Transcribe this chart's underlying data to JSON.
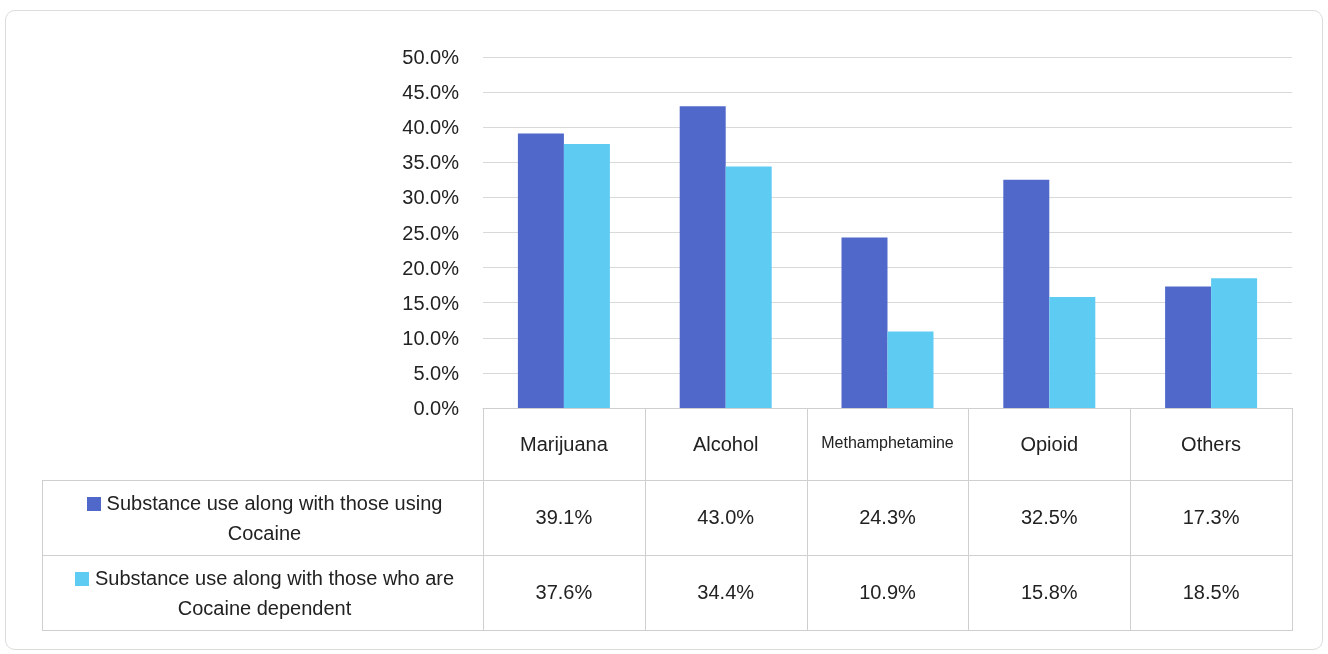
{
  "chart_data": {
    "type": "bar",
    "categories": [
      "Marijuana",
      "Alcohol",
      "Methamphetamine",
      "Opioid",
      "Others"
    ],
    "series": [
      {
        "name": "Substance use along with those using Cocaine",
        "color": "#5068c9",
        "values": [
          39.1,
          43.0,
          24.3,
          32.5,
          17.3
        ],
        "value_labels": [
          "39.1%",
          "43.0%",
          "24.3%",
          "32.5%",
          "17.3%"
        ]
      },
      {
        "name": "Substance use along with those who are Cocaine dependent",
        "color": "#5ecbf2",
        "values": [
          37.6,
          34.4,
          10.9,
          15.8,
          18.5
        ],
        "value_labels": [
          "37.6%",
          "34.4%",
          "10.9%",
          "15.8%",
          "18.5%"
        ]
      }
    ],
    "ylim": [
      0,
      50
    ],
    "yticks": [
      {
        "value": 0,
        "label": "0.0%"
      },
      {
        "value": 5,
        "label": "5.0%"
      },
      {
        "value": 10,
        "label": "10.0%"
      },
      {
        "value": 15,
        "label": "15.0%"
      },
      {
        "value": 20,
        "label": "20.0%"
      },
      {
        "value": 25,
        "label": "25.0%"
      },
      {
        "value": 30,
        "label": "30.0%"
      },
      {
        "value": 35,
        "label": "35.0%"
      },
      {
        "value": 40,
        "label": "40.0%"
      },
      {
        "value": 45,
        "label": "45.0%"
      },
      {
        "value": 50,
        "label": "50.0%"
      }
    ],
    "grid": "y",
    "legend": "bottom"
  }
}
